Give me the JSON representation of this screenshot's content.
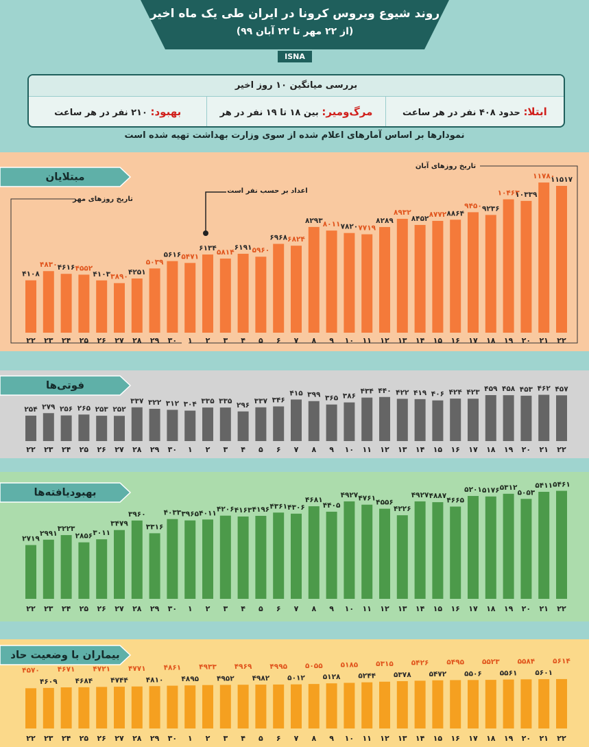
{
  "header": {
    "title": "روند شیوع ویروس کرونا در ایران طی یک ماه اخیر",
    "subtitle": "(از ۲۲ مهر تا ۲۲ آبان ۹۹)",
    "source": "ISNA"
  },
  "summary": {
    "heading": "بررسی میانگین ۱۰ روز اخیر",
    "items": [
      {
        "label": "ابتلا:",
        "text": "حدود ۴۰۸ نفر در هر ساعت"
      },
      {
        "label": "مرگ‌ومیر:",
        "text": "بین ۱۸ تا ۱۹ نفر در هر ساعت"
      },
      {
        "label": "بهبود:",
        "text": "۲۱۰ نفر در هر ساعت"
      }
    ],
    "note": "نمودارها بر اساس آمارهای اعلام شده از سوی وزارت بهداشت تهیه شده است"
  },
  "chart_data": [
    {
      "type": "bar",
      "title": "مبتلایان",
      "annotations": [
        "تاریخ روزهای مهر",
        "اعداد بر حسب نفر است",
        "تاریخ روزهای آبان"
      ],
      "categories": [
        "۲۲",
        "۲۳",
        "۲۴",
        "۲۵",
        "۲۶",
        "۲۷",
        "۲۸",
        "۲۹",
        "۳۰",
        "۱",
        "۲",
        "۳",
        "۴",
        "۵",
        "۶",
        "۷",
        "۸",
        "۹",
        "۱۰",
        "۱۱",
        "۱۲",
        "۱۳",
        "۱۴",
        "۱۵",
        "۱۶",
        "۱۷",
        "۱۸",
        "۱۹",
        "۲۰",
        "۲۱",
        "۲۲"
      ],
      "values": [
        4108,
        4830,
        4616,
        4552,
        4103,
        3890,
        4251,
        5039,
        5616,
        5471,
        6134,
        5814,
        6191,
        5960,
        6968,
        6824,
        8293,
        8011,
        7820,
        7719,
        8289,
        8932,
        8452,
        8772,
        8864,
        9450,
        9236,
        10463,
        10339,
        11780,
        11517
      ],
      "value_labels": [
        "۴۱۰۸",
        "۴۸۳۰",
        "۴۶۱۶",
        "۴۵۵۲",
        "۴۱۰۳",
        "۳۸۹۰",
        "۴۲۵۱",
        "۵۰۳۹",
        "۵۶۱۶",
        "۵۴۷۱",
        "۶۱۳۴",
        "۵۸۱۴",
        "۶۱۹۱",
        "۵۹۶۰",
        "۶۹۶۸",
        "۶۸۲۴",
        "۸۲۹۳",
        "۸۰۱۱",
        "۷۸۲۰",
        "۷۷۱۹",
        "۸۲۸۹",
        "۸۹۳۲",
        "۸۴۵۲",
        "۸۷۷۲",
        "۸۸۶۴",
        "۹۴۵۰",
        "۹۲۳۶",
        "۱۰۴۶۳",
        "۱۰۳۳۹",
        "۱۱۷۸۰",
        "۱۱۵۱۷"
      ],
      "color": "#f47a3a",
      "label_colors": [
        "#2a2a2a",
        "#e0541c"
      ],
      "label_stagger": false,
      "ylim": [
        0,
        12000
      ]
    },
    {
      "type": "bar",
      "title": "فوتی‌ها",
      "categories": [
        "۲۲",
        "۲۳",
        "۲۴",
        "۲۵",
        "۲۶",
        "۲۷",
        "۲۸",
        "۲۹",
        "۳۰",
        "۱",
        "۲",
        "۳",
        "۴",
        "۵",
        "۶",
        "۷",
        "۸",
        "۹",
        "۱۰",
        "۱۱",
        "۱۲",
        "۱۳",
        "۱۴",
        "۱۵",
        "۱۶",
        "۱۷",
        "۱۸",
        "۱۹",
        "۲۰",
        "۲۱",
        "۲۲"
      ],
      "values": [
        254,
        279,
        256,
        265,
        253,
        252,
        337,
        322,
        312,
        304,
        335,
        335,
        296,
        337,
        346,
        415,
        399,
        365,
        386,
        434,
        440,
        422,
        419,
        406,
        424,
        423,
        459,
        458,
        453,
        462,
        457
      ],
      "value_labels": [
        "۲۵۴",
        "۲۷۹",
        "۲۵۶",
        "۲۶۵",
        "۲۵۳",
        "۲۵۲",
        "۳۳۷",
        "۳۲۲",
        "۳۱۲",
        "۳۰۴",
        "۳۳۵",
        "۳۳۵",
        "۲۹۶",
        "۳۳۷",
        "۳۴۶",
        "۴۱۵",
        "۳۹۹",
        "۳۶۵",
        "۳۸۶",
        "۴۳۴",
        "۴۴۰",
        "۴۲۲",
        "۴۱۹",
        "۴۰۶",
        "۴۲۴",
        "۴۲۳",
        "۴۵۹",
        "۴۵۸",
        "۴۵۳",
        "۴۶۲",
        "۴۵۷"
      ],
      "color": "#656565",
      "label_colors": [
        "#2a2a2a"
      ],
      "label_stagger": false,
      "ylim": [
        0,
        500
      ]
    },
    {
      "type": "bar",
      "title": "بهبودیافته‌ها",
      "categories": [
        "۲۲",
        "۲۳",
        "۲۴",
        "۲۵",
        "۲۶",
        "۲۷",
        "۲۸",
        "۲۹",
        "۳۰",
        "۱",
        "۲",
        "۳",
        "۴",
        "۵",
        "۶",
        "۷",
        "۸",
        "۹",
        "۱۰",
        "۱۱",
        "۱۲",
        "۱۳",
        "۱۴",
        "۱۵",
        "۱۶",
        "۱۷",
        "۱۸",
        "۱۹",
        "۲۰",
        "۲۱",
        "۲۲"
      ],
      "values": [
        2719,
        2991,
        3223,
        2856,
        3011,
        3479,
        3960,
        3316,
        4033,
        3965,
        4011,
        4206,
        4163,
        4196,
        4361,
        4306,
        4681,
        4405,
        4927,
        4761,
        4556,
        4226,
        4927,
        4887,
        4665,
        5201,
        5176,
        5312,
        5053,
        5411,
        5461
      ],
      "value_labels": [
        "۲۷۱۹",
        "۲۹۹۱",
        "۳۲۲۳",
        "۲۸۵۶",
        "۳۰۱۱",
        "۳۴۷۹",
        "۳۹۶۰",
        "۳۳۱۶",
        "۴۰۳۳",
        "۳۹۶۵",
        "۴۰۱۱",
        "۴۲۰۶",
        "۴۱۶۳",
        "۴۱۹۶",
        "۴۳۶۱",
        "۴۳۰۶",
        "۴۶۸۱",
        "۴۴۰۵",
        "۴۹۲۷",
        "۴۷۶۱",
        "۴۵۵۶",
        "۴۲۲۶",
        "۴۹۲۷",
        "۴۸۸۷",
        "۴۶۶۵",
        "۵۲۰۱",
        "۵۱۷۶",
        "۵۳۱۲",
        "۵۰۵۳",
        "۵۴۱۱",
        "۵۴۶۱"
      ],
      "color": "#4c9a4a",
      "label_colors": [
        "#1e2a1e"
      ],
      "label_stagger": false,
      "ylim": [
        0,
        6000
      ]
    },
    {
      "type": "bar",
      "title": "بیماران با وضعیت حاد",
      "categories": [
        "۲۲",
        "۲۳",
        "۲۴",
        "۲۵",
        "۲۶",
        "۲۷",
        "۲۸",
        "۲۹",
        "۳۰",
        "۱",
        "۲",
        "۳",
        "۴",
        "۵",
        "۶",
        "۷",
        "۸",
        "۹",
        "۱۰",
        "۱۱",
        "۱۲",
        "۱۳",
        "۱۴",
        "۱۵",
        "۱۶",
        "۱۷",
        "۱۸",
        "۱۹",
        "۲۰",
        "۲۱",
        "۲۲"
      ],
      "values": [
        4570,
        4609,
        4671,
        4684,
        4721,
        4744,
        4771,
        4810,
        4861,
        4895,
        4933,
        4952,
        4969,
        4982,
        4995,
        5012,
        5055,
        5128,
        5185,
        5244,
        5315,
        5378,
        5426,
        5472,
        5495,
        5506,
        5523,
        5561,
        5584,
        5601,
        5614
      ],
      "value_labels": [
        "۴۵۷۰",
        "۴۶۰۹",
        "۴۶۷۱",
        "۴۶۸۴",
        "۴۷۲۱",
        "۴۷۴۴",
        "۴۷۷۱",
        "۴۸۱۰",
        "۴۸۶۱",
        "۴۸۹۵",
        "۴۹۳۳",
        "۴۹۵۲",
        "۴۹۶۹",
        "۴۹۸۲",
        "۴۹۹۵",
        "۵۰۱۲",
        "۵۰۵۵",
        "۵۱۲۸",
        "۵۱۸۵",
        "۵۲۴۴",
        "۵۳۱۵",
        "۵۳۷۸",
        "۵۴۲۶",
        "۵۴۷۲",
        "۵۴۹۵",
        "۵۵۰۶",
        "۵۵۲۳",
        "۵۵۶۱",
        "۵۵۸۴",
        "۵۶۰۱",
        "۵۶۱۴"
      ],
      "color": "#f5a020",
      "label_colors": [
        "#e0541c",
        "#2a2a2a"
      ],
      "label_stagger": true,
      "ylim": [
        0,
        6000
      ]
    }
  ]
}
